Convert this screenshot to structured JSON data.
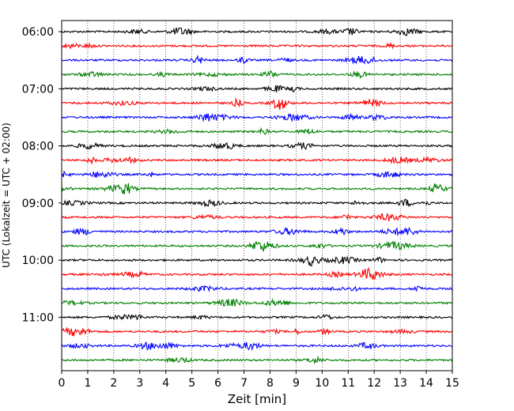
{
  "chart_data": {
    "type": "line",
    "title": "",
    "xlabel": "Zeit  [min]",
    "ylabel": "UTC (Lokalzeit = UTC + 02:00)",
    "xlim": [
      0,
      15
    ],
    "x_ticks": [
      "0",
      "1",
      "2",
      "3",
      "4",
      "5",
      "6",
      "7",
      "8",
      "9",
      "10",
      "11",
      "12",
      "13",
      "14",
      "15"
    ],
    "y_tick_labels": [
      "06:00",
      "07:00",
      "08:00",
      "09:00",
      "10:00",
      "11:00"
    ],
    "y_tick_trace_index": [
      0,
      4,
      8,
      12,
      16,
      20
    ],
    "grid": "vertical dotted at each minute",
    "trace_interval": "15 min",
    "trace_colors": [
      "#000000",
      "#ff0000",
      "#0000ff",
      "#008000"
    ],
    "traces": [
      {
        "start": "06:00",
        "color": "#000000"
      },
      {
        "start": "06:15",
        "color": "#ff0000"
      },
      {
        "start": "06:30",
        "color": "#0000ff"
      },
      {
        "start": "06:45",
        "color": "#008000"
      },
      {
        "start": "07:00",
        "color": "#000000"
      },
      {
        "start": "07:15",
        "color": "#ff0000"
      },
      {
        "start": "07:30",
        "color": "#0000ff"
      },
      {
        "start": "07:45",
        "color": "#008000"
      },
      {
        "start": "08:00",
        "color": "#000000"
      },
      {
        "start": "08:15",
        "color": "#ff0000"
      },
      {
        "start": "08:30",
        "color": "#0000ff"
      },
      {
        "start": "08:45",
        "color": "#008000"
      },
      {
        "start": "09:00",
        "color": "#000000"
      },
      {
        "start": "09:15",
        "color": "#ff0000"
      },
      {
        "start": "09:30",
        "color": "#0000ff"
      },
      {
        "start": "09:45",
        "color": "#008000"
      },
      {
        "start": "10:00",
        "color": "#000000"
      },
      {
        "start": "10:15",
        "color": "#ff0000"
      },
      {
        "start": "10:30",
        "color": "#0000ff"
      },
      {
        "start": "10:45",
        "color": "#008000"
      },
      {
        "start": "11:00",
        "color": "#000000"
      },
      {
        "start": "11:15",
        "color": "#ff0000"
      },
      {
        "start": "11:30",
        "color": "#0000ff"
      },
      {
        "start": "11:45",
        "color": "#008000"
      }
    ]
  }
}
